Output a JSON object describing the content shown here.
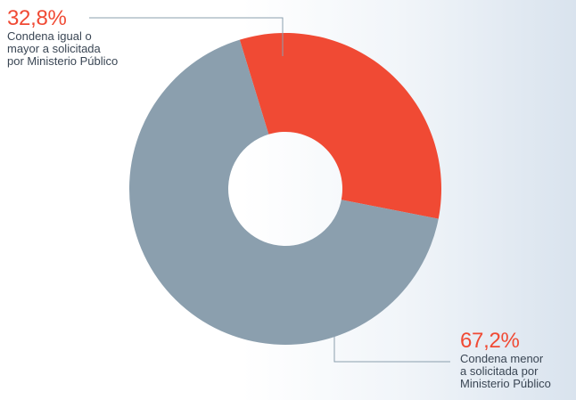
{
  "chart_data": {
    "type": "pie",
    "donut": true,
    "start_angle_deg": -17,
    "direction": "clockwise",
    "slices": [
      {
        "label": "Condena igual o\nmayor a solicitada\npor Ministerio Público",
        "value_label": "32,8%",
        "value": 32.8,
        "color": "#f04a34"
      },
      {
        "label": "Condena menor\na solicitada por\nMinisterio Público",
        "value_label": "67,2%",
        "value": 67.2,
        "color": "#8b9fae"
      }
    ]
  },
  "colors": {
    "leader_line": "#8b9fae",
    "value_text": "#f04a34",
    "label_text": "#3a4654"
  }
}
